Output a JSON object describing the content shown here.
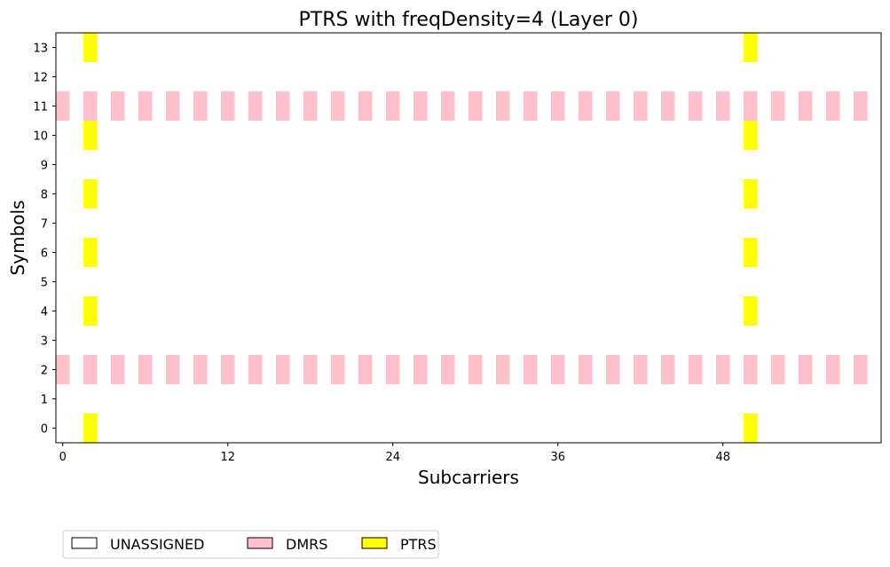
{
  "chart_data": {
    "type": "heatmap",
    "title": "PTRS with freqDensity=4 (Layer 0)",
    "xlabel": "Subcarriers",
    "ylabel": "Symbols",
    "xlim": [
      -0.5,
      59.5
    ],
    "ylim": [
      -0.5,
      13.5
    ],
    "xticks": [
      0,
      12,
      24,
      36,
      48
    ],
    "yticks": [
      0,
      1,
      2,
      3,
      4,
      5,
      6,
      7,
      8,
      9,
      10,
      11,
      12,
      13
    ],
    "grid": false,
    "legend": {
      "placement": "bottom-left",
      "entries": [
        {
          "name": "UNASSIGNED",
          "color": "#ffffff"
        },
        {
          "name": "DMRS",
          "color": "#ffc0cb"
        },
        {
          "name": "PTRS",
          "color": "#ffff00"
        }
      ]
    },
    "series": [
      {
        "name": "DMRS",
        "color": "#ffc0cb",
        "symbols": [
          2,
          11
        ],
        "subcarriers": [
          0,
          2,
          4,
          6,
          8,
          10,
          12,
          14,
          16,
          18,
          20,
          22,
          24,
          26,
          28,
          30,
          32,
          34,
          36,
          38,
          40,
          42,
          44,
          46,
          48,
          50,
          52,
          54,
          56,
          58
        ]
      },
      {
        "name": "PTRS",
        "color": "#ffff00",
        "symbols": [
          0,
          4,
          6,
          8,
          10,
          13
        ],
        "subcarriers": [
          2,
          50
        ]
      }
    ]
  }
}
